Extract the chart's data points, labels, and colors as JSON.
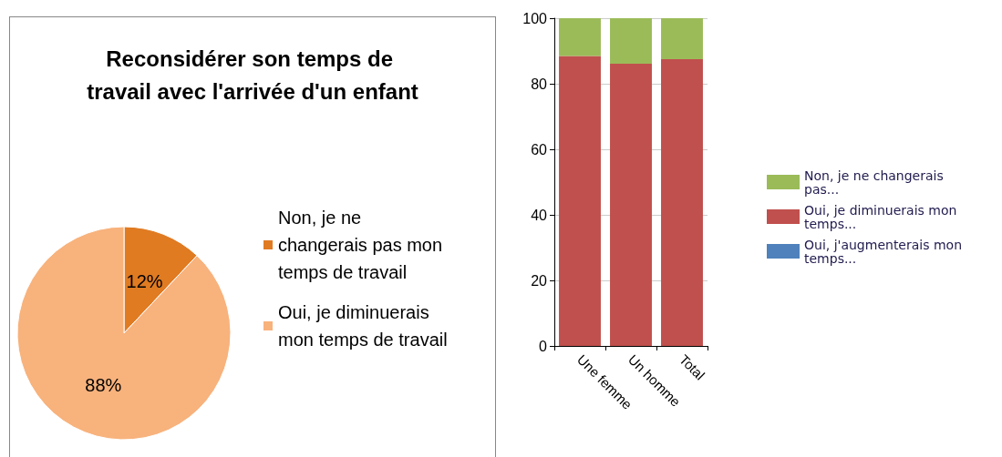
{
  "chart_data": [
    {
      "type": "pie",
      "title": "Reconsidérer son temps de travail avec l'arrivée d'un enfant",
      "categories": [
        "Non, je ne changerais pas mon temps de travail",
        "Oui, je diminuerais mon temps de travail"
      ],
      "values": [
        12,
        88
      ],
      "colors": [
        "#e07b22",
        "#f8b27c"
      ],
      "value_labels": [
        "12%",
        "88%"
      ],
      "legend": "right"
    },
    {
      "type": "bar",
      "stacked": true,
      "categories": [
        "Une femme",
        "Un homme",
        "Total"
      ],
      "series": [
        {
          "name": "Oui, j'augmenterais mon temps...",
          "color": "#4f81bd",
          "values": [
            0,
            0,
            0
          ]
        },
        {
          "name": "Oui, je diminuerais mon temps...",
          "color": "#c0504d",
          "values": [
            88.5,
            86.1,
            87.5
          ]
        },
        {
          "name": "Non, je ne changerais pas...",
          "color": "#9bbb59",
          "values": [
            11.5,
            13.9,
            12.5
          ]
        }
      ],
      "ylim": [
        0,
        100
      ],
      "yticks": [
        0,
        20,
        40,
        60,
        80,
        100
      ],
      "grid": "y",
      "legend": "right"
    }
  ]
}
